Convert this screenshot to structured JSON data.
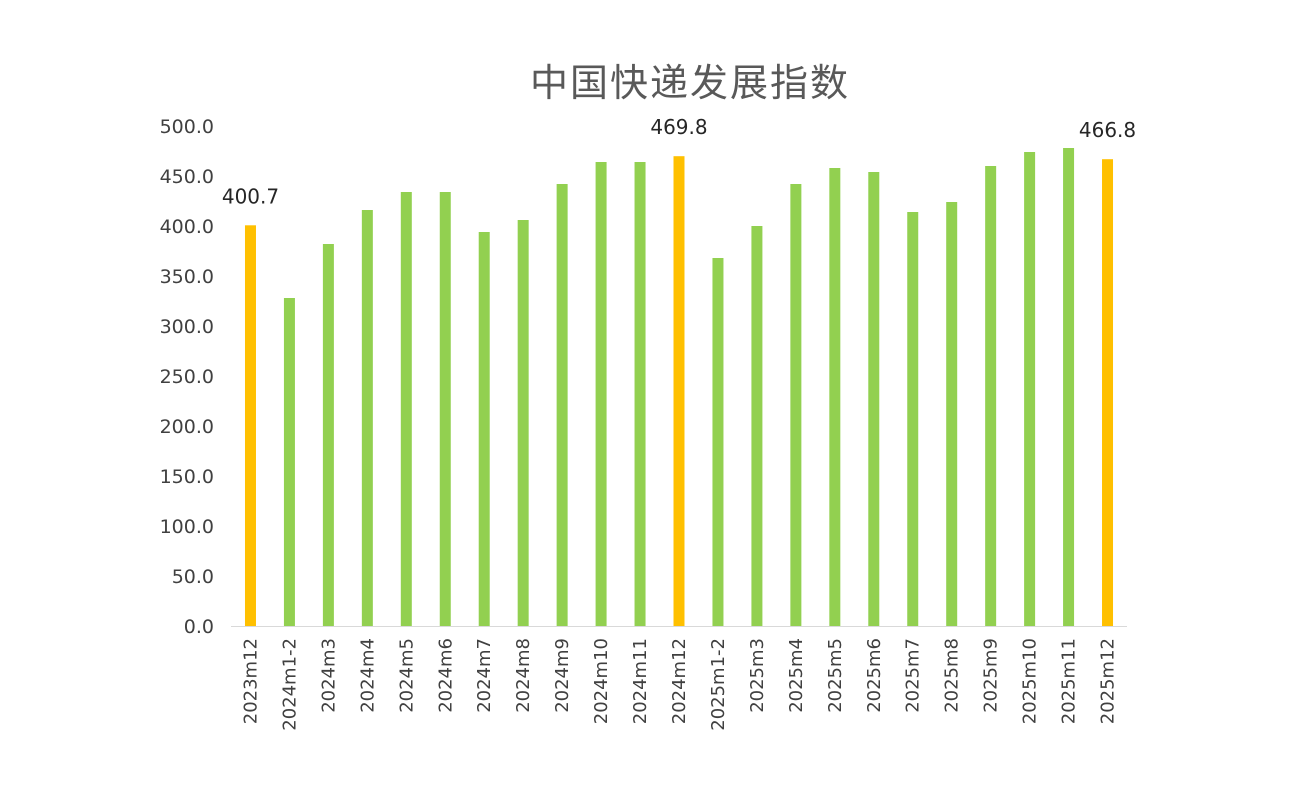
{
  "chart_data": {
    "type": "bar",
    "title": "中国快递发展指数",
    "xlabel": "",
    "ylabel": "",
    "ylim": [
      0,
      500
    ],
    "yticks": [
      "0.0",
      "50.0",
      "100.0",
      "150.0",
      "200.0",
      "250.0",
      "300.0",
      "350.0",
      "400.0",
      "450.0",
      "500.0"
    ],
    "grid": false,
    "legend": "none",
    "categories": [
      "2023m12",
      "2024m1-2",
      "2024m3",
      "2024m4",
      "2024m5",
      "2024m6",
      "2024m7",
      "2024m8",
      "2024m9",
      "2024m10",
      "2024m11",
      "2024m12",
      "2025m1-2",
      "2025m3",
      "2025m4",
      "2025m5",
      "2025m6",
      "2025m7",
      "2025m8",
      "2025m9",
      "2025m10",
      "2025m11",
      "2025m12"
    ],
    "values": [
      400.7,
      328,
      382,
      416,
      434,
      434,
      394,
      406,
      442,
      464,
      464,
      469.8,
      368,
      400,
      442,
      458,
      454,
      414,
      424,
      460,
      474,
      478,
      466.8
    ],
    "highlight": [
      "2023m12",
      "2024m12",
      "2025m12"
    ],
    "data_labels": [
      {
        "category": "2023m12",
        "text": "400.7"
      },
      {
        "category": "2024m12",
        "text": "469.8"
      },
      {
        "category": "2025m12",
        "text": "466.8"
      }
    ],
    "colors": {
      "bar": "#92d050",
      "highlight": "#ffc000",
      "axis": "#d9d9d9"
    }
  }
}
